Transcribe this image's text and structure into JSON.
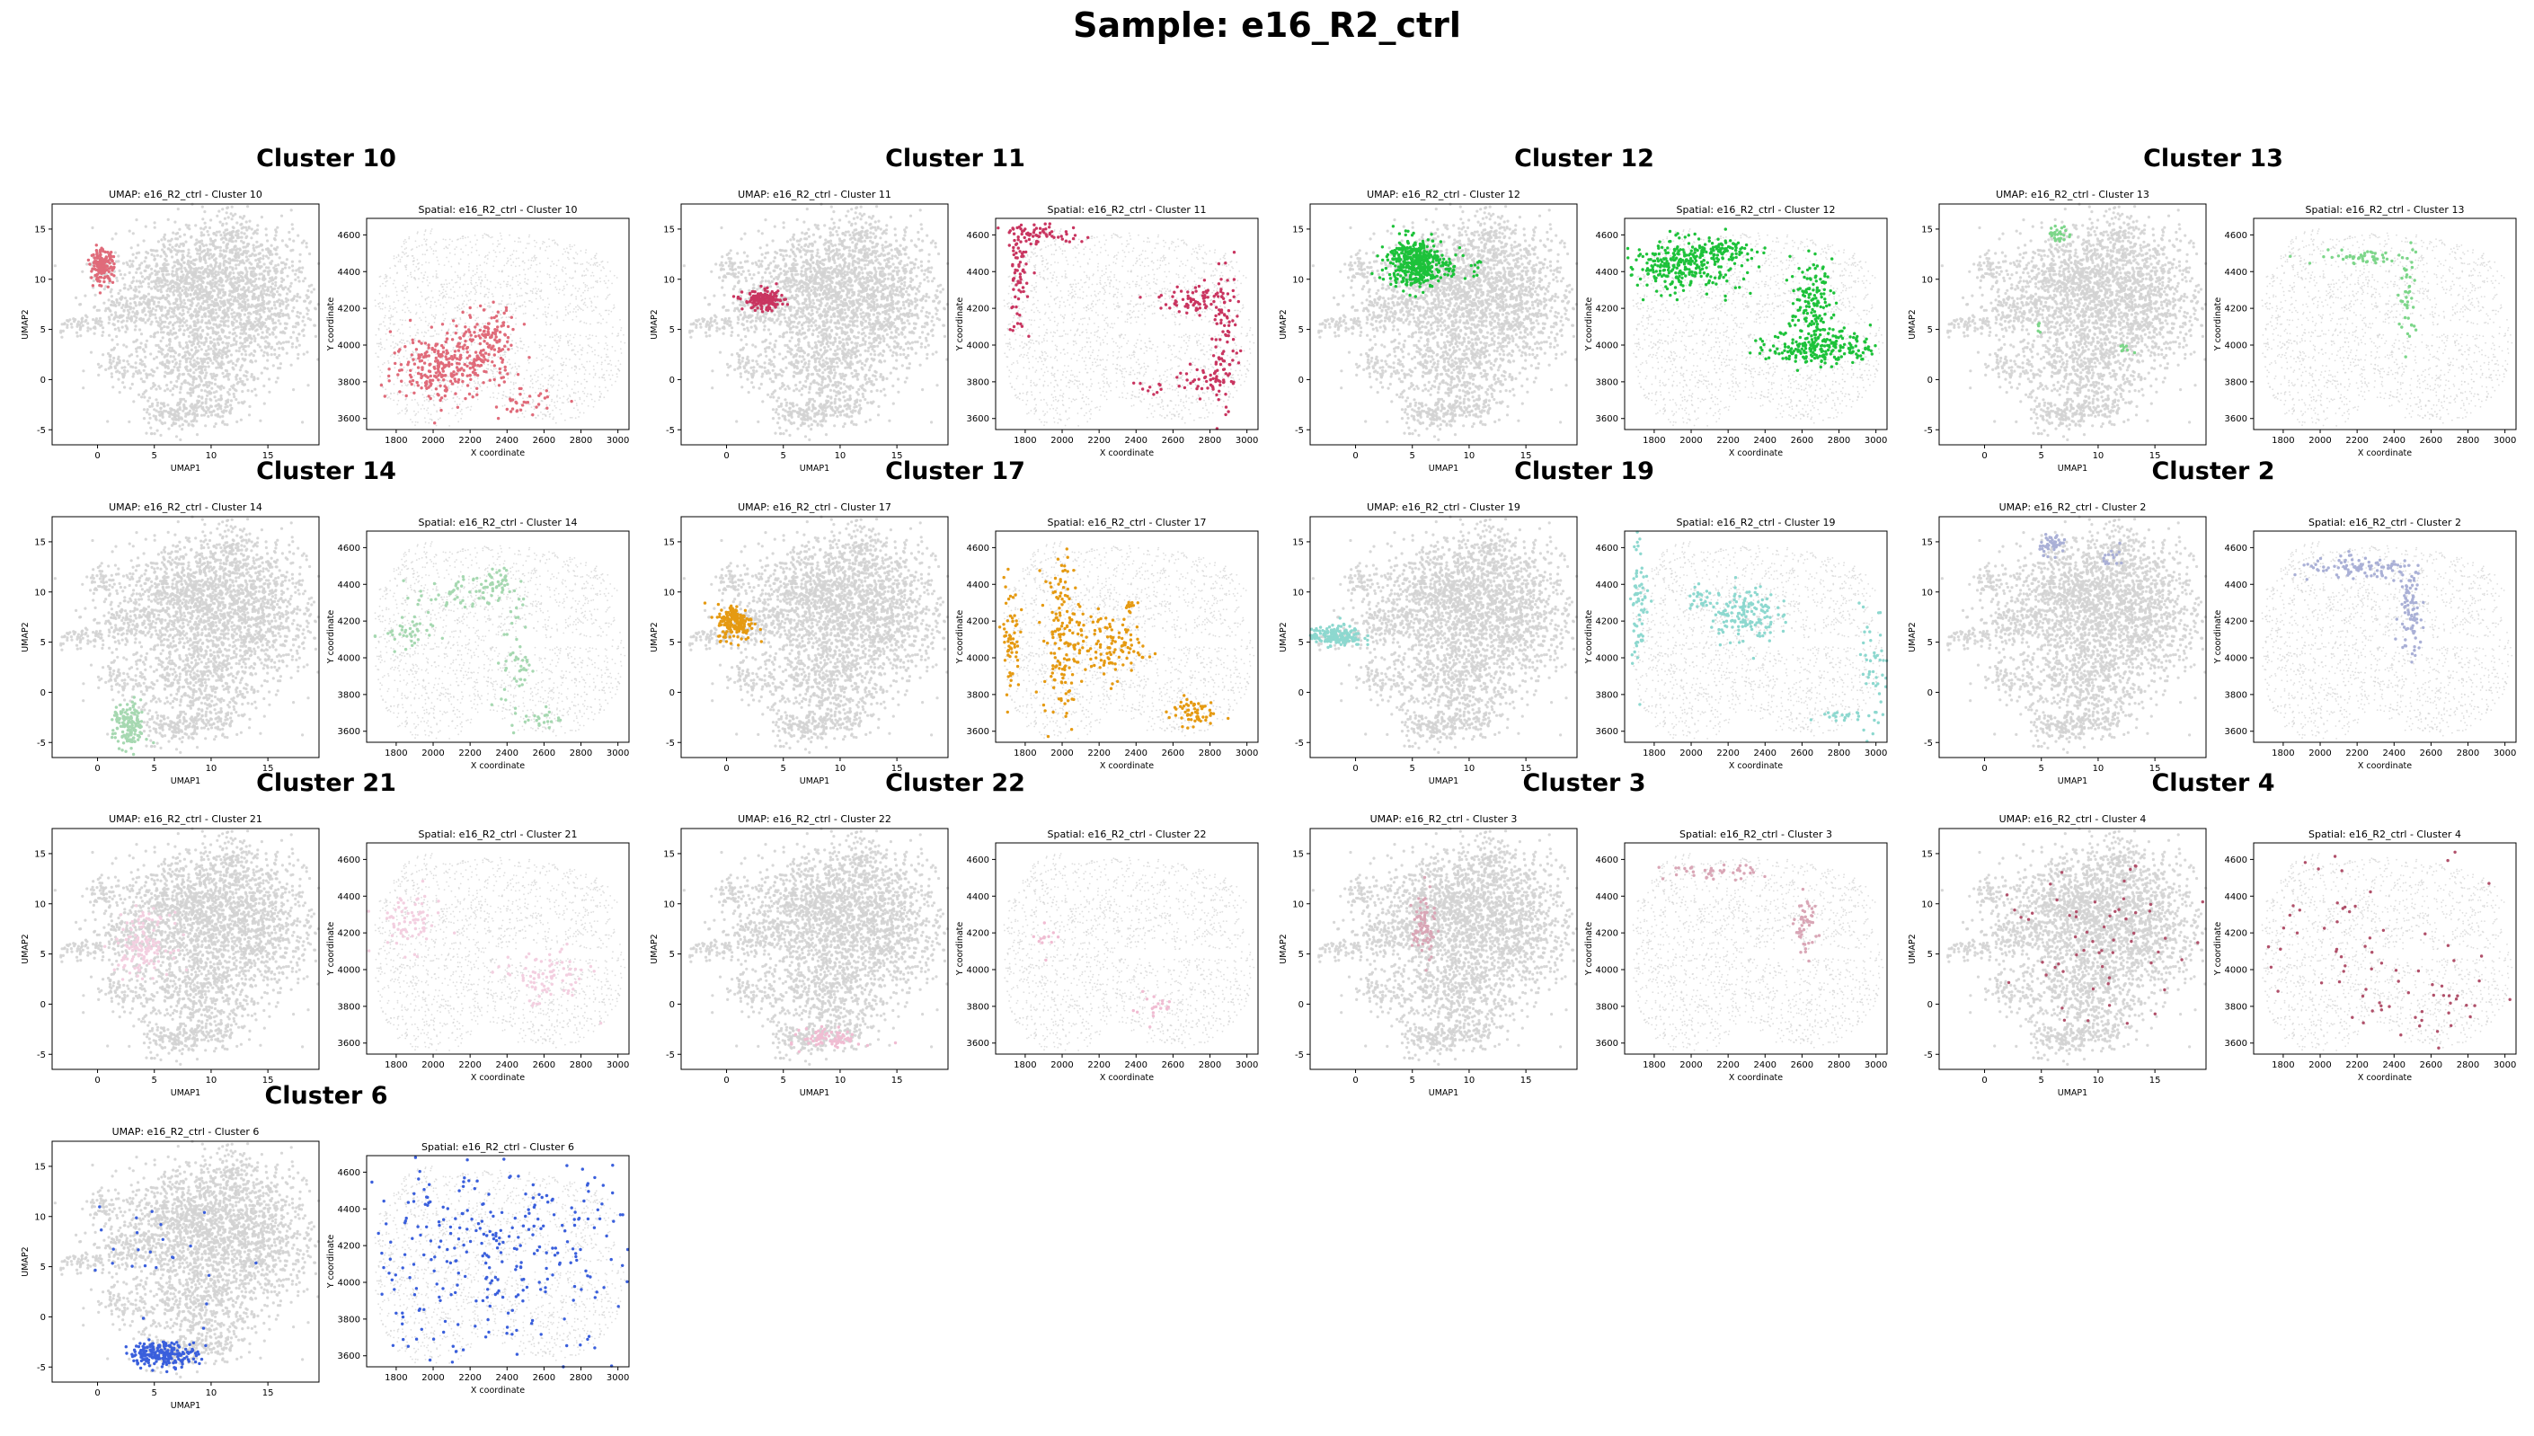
{
  "suptitle": "Sample: e16_R2_ctrl",
  "colors": {
    "background_points": "#d3d3d3",
    "axes": "#000000"
  },
  "chart_data": {
    "type": "scatter",
    "layout": "grid of cluster panels, 4 columns, each with a UMAP scatter and a spatial scatter",
    "umap_axes": {
      "xlabel": "UMAP1",
      "ylabel": "UMAP2",
      "xlim": [
        -4,
        19.5
      ],
      "ylim": [
        -6.5,
        17.5
      ],
      "xticks": [
        0,
        5,
        10,
        15
      ],
      "yticks": [
        -5,
        0,
        5,
        10,
        15
      ]
    },
    "spatial_axes": {
      "xlabel": "X coordinate",
      "ylabel": "Y coordinate",
      "xlim": [
        1640,
        3060
      ],
      "ylim": [
        3540,
        4690
      ],
      "xticks": [
        1800,
        2000,
        2200,
        2400,
        2600,
        2800,
        3000
      ],
      "yticks": [
        3600,
        3800,
        4000,
        4200,
        4400,
        4600
      ]
    },
    "clusters": [
      {
        "title": "Cluster 10",
        "umap_title": "UMAP: e16_R2_ctrl - Cluster 10",
        "spatial_title": "Spatial: e16_R2_ctrl - Cluster 10",
        "color": "#e06b7a",
        "umap_blobs": [
          [
            0.4,
            11.3,
            0.5,
            0.8,
            160
          ]
        ],
        "spatial_blobs": [
          [
            2000,
            3880,
            110,
            90,
            170
          ],
          [
            2220,
            3940,
            110,
            100,
            170
          ],
          [
            2330,
            4060,
            50,
            70,
            60
          ],
          [
            2500,
            3680,
            70,
            40,
            30
          ]
        ]
      },
      {
        "title": "Cluster 11",
        "umap_title": "UMAP: e16_R2_ctrl - Cluster 11",
        "spatial_title": "Spatial: e16_R2_ctrl - Cluster 11",
        "color": "#c93560",
        "umap_blobs": [
          [
            3.3,
            7.9,
            0.9,
            0.5,
            160
          ]
        ],
        "spatial_blobs": [
          [
            1760,
            4380,
            25,
            160,
            70
          ],
          [
            1900,
            4600,
            110,
            25,
            60
          ],
          [
            2730,
            4250,
            100,
            40,
            70
          ],
          [
            2880,
            4020,
            35,
            200,
            90
          ],
          [
            2770,
            3810,
            70,
            35,
            40
          ],
          [
            2500,
            3760,
            60,
            20,
            10
          ]
        ]
      },
      {
        "title": "Cluster 12",
        "umap_title": "UMAP: e16_R2_ctrl - Cluster 12",
        "spatial_title": "Spatial: e16_R2_ctrl - Cluster 12",
        "color": "#1dc23a",
        "umap_blobs": [
          [
            5.2,
            11.7,
            1.2,
            1.2,
            420
          ],
          [
            8.5,
            11.0,
            1.2,
            0.6,
            40
          ]
        ],
        "spatial_blobs": [
          [
            1950,
            4440,
            160,
            70,
            320
          ],
          [
            2180,
            4520,
            80,
            25,
            60
          ],
          [
            2650,
            4230,
            55,
            110,
            140
          ],
          [
            2700,
            3990,
            140,
            50,
            220
          ]
        ]
      },
      {
        "title": "Cluster 13",
        "umap_title": "UMAP: e16_R2_ctrl - Cluster 13",
        "spatial_title": "Spatial: e16_R2_ctrl - Cluster 13",
        "color": "#7dd68a",
        "umap_blobs": [
          [
            6.6,
            14.4,
            0.5,
            0.4,
            30
          ],
          [
            12.5,
            3.2,
            0.3,
            0.3,
            8
          ],
          [
            4.8,
            5.0,
            0.3,
            0.3,
            5
          ]
        ],
        "spatial_blobs": [
          [
            2250,
            4480,
            140,
            20,
            50
          ],
          [
            2470,
            4250,
            25,
            130,
            40
          ]
        ]
      },
      {
        "title": "Cluster 14",
        "umap_title": "UMAP: e16_R2_ctrl - Cluster 14",
        "spatial_title": "Spatial: e16_R2_ctrl - Cluster 14",
        "color": "#a6d8b1",
        "umap_blobs": [
          [
            2.8,
            -3.4,
            0.7,
            1.2,
            150
          ]
        ],
        "spatial_blobs": [
          [
            1850,
            4120,
            70,
            50,
            40
          ],
          [
            2150,
            4340,
            120,
            50,
            60
          ],
          [
            2350,
            4420,
            60,
            40,
            30
          ],
          [
            2450,
            4000,
            40,
            170,
            50
          ],
          [
            2590,
            3670,
            50,
            30,
            20
          ]
        ]
      },
      {
        "title": "Cluster 17",
        "umap_title": "UMAP: e16_R2_ctrl - Cluster 17",
        "spatial_title": "Spatial: e16_R2_ctrl - Cluster 17",
        "color": "#e59a12",
        "umap_blobs": [
          [
            0.8,
            7.0,
            0.8,
            0.9,
            180
          ]
        ],
        "spatial_blobs": [
          [
            1720,
            4110,
            25,
            150,
            60
          ],
          [
            2000,
            4120,
            50,
            230,
            150
          ],
          [
            2250,
            4060,
            90,
            90,
            110
          ],
          [
            2360,
            4270,
            20,
            40,
            15
          ],
          [
            2700,
            3710,
            60,
            40,
            60
          ]
        ]
      },
      {
        "title": "Cluster 19",
        "umap_title": "UMAP: e16_R2_ctrl - Cluster 19",
        "spatial_title": "Spatial: e16_R2_ctrl - Cluster 19",
        "color": "#8dd8cf",
        "umap_blobs": [
          [
            -1.8,
            5.6,
            1.2,
            0.5,
            180
          ]
        ],
        "spatial_blobs": [
          [
            1720,
            4360,
            25,
            200,
            70
          ],
          [
            2280,
            4240,
            90,
            80,
            150
          ],
          [
            2050,
            4320,
            40,
            40,
            20
          ],
          [
            2990,
            3900,
            40,
            180,
            50
          ],
          [
            2820,
            3680,
            60,
            20,
            20
          ]
        ]
      },
      {
        "title": "Cluster 2",
        "umap_title": "UMAP: e16_R2_ctrl - Cluster 2",
        "spatial_title": "Spatial: e16_R2_ctrl - Cluster 2",
        "color": "#aab0d6",
        "umap_blobs": [
          [
            6.0,
            14.8,
            0.6,
            0.5,
            50
          ],
          [
            11.5,
            13.5,
            0.5,
            0.5,
            15
          ]
        ],
        "spatial_blobs": [
          [
            2230,
            4480,
            180,
            30,
            100
          ],
          [
            2490,
            4250,
            30,
            130,
            80
          ]
        ]
      },
      {
        "title": "Cluster 21",
        "umap_title": "UMAP: e16_R2_ctrl - Cluster 21",
        "spatial_title": "Spatial: e16_R2_ctrl - Cluster 21",
        "color": "#f3cfe0",
        "umap_blobs": [
          [
            4.0,
            6.0,
            1.2,
            1.5,
            140
          ]
        ],
        "spatial_blobs": [
          [
            1870,
            4260,
            90,
            80,
            70
          ],
          [
            2600,
            3950,
            120,
            80,
            80
          ]
        ]
      },
      {
        "title": "Cluster 22",
        "umap_title": "UMAP: e16_R2_ctrl - Cluster 22",
        "spatial_title": "Spatial: e16_R2_ctrl - Cluster 22",
        "color": "#f0bcd2",
        "umap_blobs": [
          [
            9.3,
            -3.4,
            1.3,
            0.5,
            80
          ]
        ],
        "spatial_blobs": [
          [
            2500,
            3800,
            60,
            40,
            20
          ],
          [
            1900,
            4150,
            40,
            40,
            12
          ]
        ]
      },
      {
        "title": "Cluster 3",
        "umap_title": "UMAP: e16_R2_ctrl - Cluster 3",
        "spatial_title": "Spatial: e16_R2_ctrl - Cluster 3",
        "color": "#d9a6b6",
        "umap_blobs": [
          [
            6.0,
            7.7,
            0.5,
            1.8,
            80
          ]
        ],
        "spatial_blobs": [
          [
            2100,
            4530,
            130,
            20,
            40
          ],
          [
            2620,
            4240,
            30,
            80,
            50
          ]
        ]
      },
      {
        "title": "Cluster 4",
        "umap_title": "UMAP: e16_R2_ctrl - Cluster 4",
        "spatial_title": "Spatial: e16_R2_ctrl - Cluster 4",
        "color": "#b0506a",
        "umap_blobs": [
          [
            10.5,
            6.0,
            4.0,
            3.5,
            60
          ]
        ],
        "spatial_blobs": [
          [
            2300,
            4150,
            420,
            250,
            60
          ],
          [
            2550,
            3800,
            200,
            100,
            20
          ]
        ]
      },
      {
        "title": "Cluster 6",
        "umap_title": "UMAP: e16_R2_ctrl - Cluster 6",
        "spatial_title": "Spatial: e16_R2_ctrl - Cluster 6",
        "color": "#3a5fdc",
        "umap_blobs": [
          [
            5.8,
            -3.7,
            1.5,
            0.6,
            220
          ],
          [
            4.5,
            6.5,
            4.0,
            4.0,
            25
          ]
        ],
        "spatial_blobs": [
          [
            2300,
            4150,
            420,
            280,
            330
          ]
        ]
      }
    ]
  }
}
